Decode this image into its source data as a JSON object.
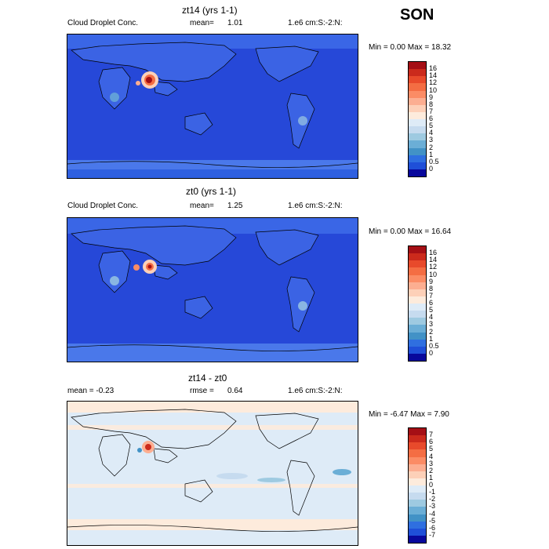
{
  "season": "SON",
  "panels": [
    {
      "title": "zt14 (yrs 1-1)",
      "left_label": "Cloud Droplet Conc.",
      "stat_label": "mean=",
      "stat_value": "1.01",
      "units": "1.e6 cm:S:-2:N:",
      "minmax": "Min =   0.00 Max =  18.32",
      "scale_labels": [
        "16",
        "14",
        "12",
        "10",
        "9",
        "8",
        "7",
        "6",
        "5",
        "4",
        "3",
        "2",
        "1",
        "0.5",
        "0"
      ],
      "colors": [
        "#a50f15",
        "#cb2a1c",
        "#e84a2b",
        "#f46d43",
        "#fb8c65",
        "#fcae91",
        "#fdd0b8",
        "#fdebdc",
        "#deebf7",
        "#c6dbef",
        "#9ecae1",
        "#6baed6",
        "#4292c6",
        "#2f6fe0",
        "#1f4fd8",
        "#08089c"
      ]
    },
    {
      "title": "zt0 (yrs 1-1)",
      "left_label": "Cloud Droplet Conc.",
      "stat_label": "mean=",
      "stat_value": "1.25",
      "units": "1.e6 cm:S:-2:N:",
      "minmax": "Min =   0.00 Max =  16.64",
      "scale_labels": [
        "16",
        "14",
        "12",
        "10",
        "9",
        "8",
        "7",
        "6",
        "5",
        "4",
        "3",
        "2",
        "1",
        "0.5",
        "0"
      ],
      "colors": [
        "#a50f15",
        "#cb2a1c",
        "#e84a2b",
        "#f46d43",
        "#fb8c65",
        "#fcae91",
        "#fdd0b8",
        "#fdebdc",
        "#deebf7",
        "#c6dbef",
        "#9ecae1",
        "#6baed6",
        "#4292c6",
        "#2f6fe0",
        "#1f4fd8",
        "#08089c"
      ]
    },
    {
      "title": "zt14 - zt0",
      "left_label": "mean =  -0.23",
      "stat_label": "rmse =",
      "stat_value": "0.64",
      "units": "1.e6 cm:S:-2:N:",
      "minmax": "Min =  -6.47 Max =   7.90",
      "scale_labels": [
        "7",
        "6",
        "5",
        "4",
        "3",
        "2",
        "1",
        "0",
        "-1",
        "-2",
        "-3",
        "-4",
        "-5",
        "-6",
        "-7"
      ],
      "colors": [
        "#a50f15",
        "#cb2a1c",
        "#e84a2b",
        "#f46d43",
        "#fb8c65",
        "#fcae91",
        "#fdd0b8",
        "#fdebdc",
        "#deebf7",
        "#c6dbef",
        "#9ecae1",
        "#6baed6",
        "#4292c6",
        "#2f6fe0",
        "#1f4fd8",
        "#08089c"
      ]
    }
  ]
}
